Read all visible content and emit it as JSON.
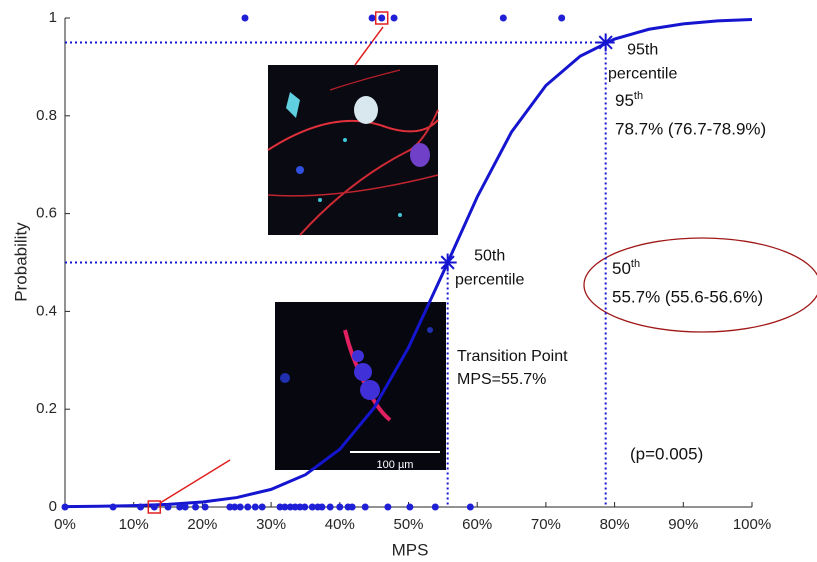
{
  "chart_data": {
    "type": "scatter",
    "x_label": "MPS",
    "y_label": "Probability",
    "xlim": [
      0,
      100
    ],
    "ylim": [
      0,
      1
    ],
    "xticks": [
      {
        "value": 0,
        "label": "0%"
      },
      {
        "value": 10,
        "label": "10%"
      },
      {
        "value": 20,
        "label": "20%"
      },
      {
        "value": 30,
        "label": "30%"
      },
      {
        "value": 40,
        "label": "40%"
      },
      {
        "value": 50,
        "label": "50%"
      },
      {
        "value": 60,
        "label": "60%"
      },
      {
        "value": 70,
        "label": "70%"
      },
      {
        "value": 80,
        "label": "80%"
      },
      {
        "value": 90,
        "label": "90%"
      },
      {
        "value": 100,
        "label": "100%"
      }
    ],
    "yticks": [
      0,
      0.2,
      0.4,
      0.6,
      0.8,
      1
    ],
    "observations": {
      "color": "#1f1fd6",
      "x": [
        26.2,
        44.7,
        46.1,
        47.9,
        63.8,
        72.3,
        0,
        7,
        11,
        13,
        15,
        16.7,
        17.5,
        19,
        20.4,
        24,
        24.7,
        25.5,
        26.6,
        27.7,
        28.7,
        31.3,
        32,
        32.8,
        33.5,
        34.2,
        34.9,
        36,
        36.8,
        37.4,
        38.6,
        40,
        41.2,
        41.8,
        43.7,
        47,
        50.2,
        53.9,
        59
      ],
      "values": [
        1,
        1,
        1,
        1,
        1,
        1,
        0,
        0,
        0,
        0,
        0,
        0,
        0,
        0,
        0,
        0,
        0,
        0,
        0,
        0,
        0,
        0,
        0,
        0,
        0,
        0,
        0,
        0,
        0,
        0,
        0,
        0,
        0,
        0,
        0,
        0,
        0,
        0,
        0
      ]
    },
    "fit": {
      "color": "#1515d0",
      "x": [
        0,
        5,
        10,
        15,
        20,
        25,
        30,
        35,
        40,
        45,
        50,
        55,
        60,
        65,
        70,
        75,
        80,
        85,
        90,
        95,
        100
      ],
      "values": [
        0.0008,
        0.0015,
        0.0029,
        0.0054,
        0.0103,
        0.0193,
        0.036,
        0.066,
        0.118,
        0.203,
        0.326,
        0.478,
        0.634,
        0.767,
        0.862,
        0.922,
        0.957,
        0.977,
        0.988,
        0.994,
        0.997
      ]
    },
    "markers": [
      {
        "x": 55.7,
        "y": 0.5,
        "label": "50th",
        "label2": "percentile"
      },
      {
        "x": 78.7,
        "y": 0.95,
        "label": "95th",
        "label2": "percentile"
      }
    ],
    "transition": [
      "Transition Point",
      "MPS=55.7%"
    ],
    "results": [
      {
        "number": "50",
        "sup": "th",
        "text": "55.7% (55.6-56.6%)"
      },
      {
        "number": "95",
        "sup": "th",
        "text": "78.7% (76.7-78.9%)"
      }
    ],
    "p_value": "(p=0.005)",
    "scale_bar": "100 µm"
  }
}
